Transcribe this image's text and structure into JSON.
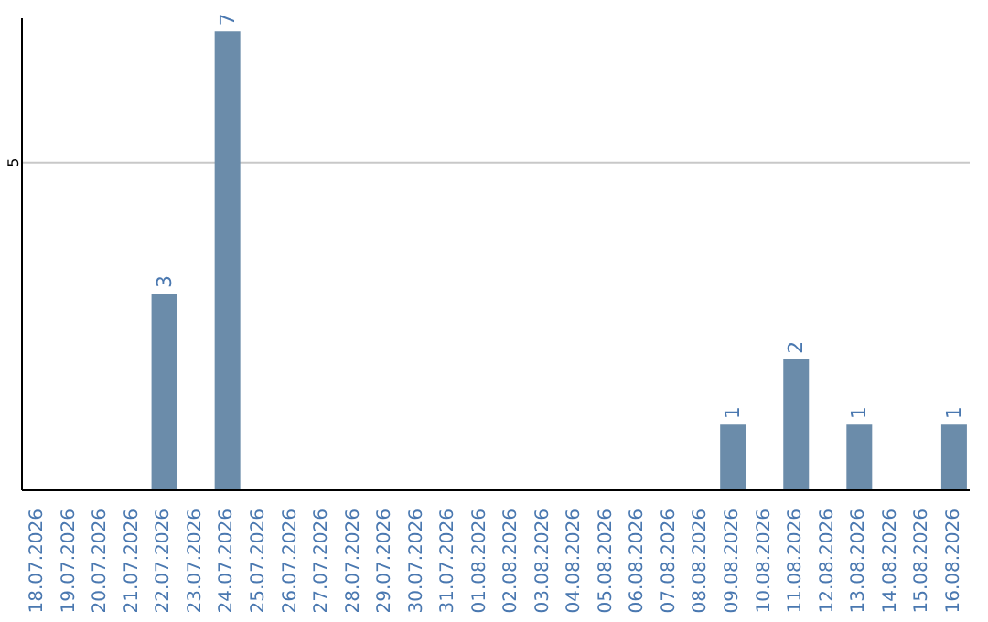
{
  "chart_data": {
    "type": "bar",
    "categories": [
      "18.07.2026",
      "19.07.2026",
      "20.07.2026",
      "21.07.2026",
      "22.07.2026",
      "23.07.2026",
      "24.07.2026",
      "25.07.2026",
      "26.07.2026",
      "27.07.2026",
      "28.07.2026",
      "29.07.2026",
      "30.07.2026",
      "31.07.2026",
      "01.08.2026",
      "02.08.2026",
      "03.08.2026",
      "04.08.2026",
      "05.08.2026",
      "06.08.2026",
      "07.08.2026",
      "08.08.2026",
      "09.08.2026",
      "10.08.2026",
      "11.08.2026",
      "12.08.2026",
      "13.08.2026",
      "14.08.2026",
      "15.08.2026",
      "16.08.2026"
    ],
    "values": [
      0,
      0,
      0,
      0,
      3,
      0,
      7,
      0,
      0,
      0,
      0,
      0,
      0,
      0,
      0,
      0,
      0,
      0,
      0,
      0,
      0,
      0,
      1,
      0,
      2,
      0,
      1,
      0,
      0,
      1
    ],
    "value_labels": [
      null,
      null,
      null,
      null,
      "3",
      null,
      "7",
      null,
      null,
      null,
      null,
      null,
      null,
      null,
      null,
      null,
      null,
      null,
      null,
      null,
      null,
      null,
      "1",
      null,
      "2",
      null,
      "1",
      null,
      null,
      "1"
    ],
    "color": "#6b8caa",
    "ylim": [
      0,
      7.2
    ],
    "yticks": [
      5
    ],
    "grid": "y"
  }
}
